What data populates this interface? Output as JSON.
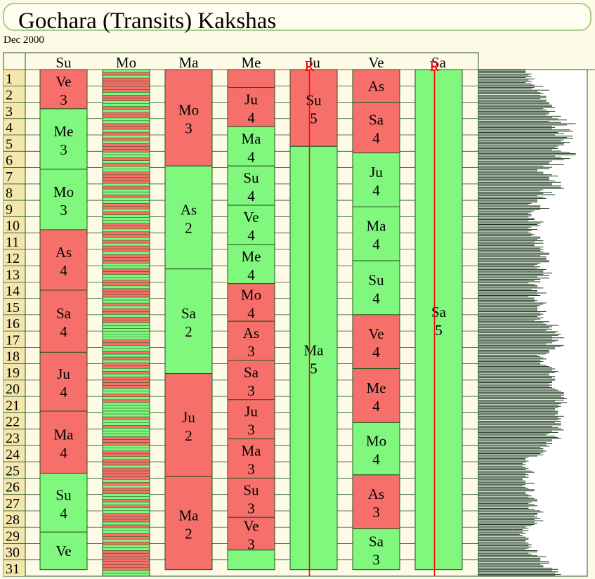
{
  "title": "Gochara (Transits) Kakshas",
  "subtitle": "Dec 2000",
  "colors": {
    "favorable": "#80f87e",
    "unfavorable": "#f76f6a",
    "retro": "#ff0000",
    "grid": "#225522",
    "bar": "#1a3a1a",
    "background": "#fdfbe6"
  },
  "days": [
    "1",
    "2",
    "3",
    "4",
    "5",
    "6",
    "7",
    "8",
    "9",
    "10",
    "11",
    "12",
    "13",
    "14",
    "15",
    "16",
    "17",
    "18",
    "19",
    "20",
    "21",
    "22",
    "23",
    "24",
    "25",
    "26",
    "27",
    "28",
    "29",
    "30",
    "31"
  ],
  "chart_data": {
    "type": "table",
    "columns": [
      {
        "name": "Su",
        "retro_marker": "",
        "blocks": [
          {
            "from": 1,
            "to": 3.4,
            "label": "Ve",
            "num": "3",
            "state": "unfavorable"
          },
          {
            "from": 3.4,
            "to": 7.1,
            "label": "Me",
            "num": "3",
            "state": "favorable"
          },
          {
            "from": 7.1,
            "to": 10.8,
            "label": "Mo",
            "num": "3",
            "state": "favorable"
          },
          {
            "from": 10.8,
            "to": 14.5,
            "label": "As",
            "num": "4",
            "state": "unfavorable"
          },
          {
            "from": 14.5,
            "to": 18.3,
            "label": "Sa",
            "num": "4",
            "state": "unfavorable"
          },
          {
            "from": 18.3,
            "to": 21.9,
            "label": "Ju",
            "num": "4",
            "state": "unfavorable"
          },
          {
            "from": 21.9,
            "to": 25.7,
            "label": "Ma",
            "num": "4",
            "state": "unfavorable"
          },
          {
            "from": 25.7,
            "to": 29.3,
            "label": "Su",
            "num": "4",
            "state": "favorable"
          },
          {
            "from": 29.3,
            "to": 31.6,
            "label": "Ve",
            "num": "",
            "state": "favorable"
          }
        ]
      },
      {
        "name": "Mo",
        "retro_marker": "",
        "stripes": "GRGRRRRRGRRGGRGRRGGRRGRGRGRRRGGRGRGGRRRRGRGGRGGRRGRGGGRRGRRGRGRRGRRRGGRRGGRRGRRRGGRGRRGRRGGGGGGRRGGRGRGRRGRGRRRRGGRGRGGGGGRGGRGGGRRRGGRRGRRGRRRRGRGRRGGRGRGGRRRGRGGRRGRGGRRRRRRRGG"
      },
      {
        "name": "Ma",
        "retro_marker": "",
        "blocks": [
          {
            "from": 1,
            "to": 6.9,
            "label": "Mo",
            "num": "3",
            "state": "unfavorable"
          },
          {
            "from": 6.9,
            "to": 13.2,
            "label": "As",
            "num": "2",
            "state": "favorable"
          },
          {
            "from": 13.2,
            "to": 19.6,
            "label": "Sa",
            "num": "2",
            "state": "favorable"
          },
          {
            "from": 19.6,
            "to": 25.9,
            "label": "Ju",
            "num": "2",
            "state": "unfavorable"
          },
          {
            "from": 25.9,
            "to": 31.6,
            "label": "Ma",
            "num": "2",
            "state": "unfavorable"
          }
        ]
      },
      {
        "name": "Me",
        "retro_marker": "",
        "blocks": [
          {
            "from": 1,
            "to": 2.1,
            "label": "",
            "num": "",
            "state": "unfavorable"
          },
          {
            "from": 2.1,
            "to": 4.5,
            "label": "Ju",
            "num": "4",
            "state": "unfavorable"
          },
          {
            "from": 4.5,
            "to": 6.9,
            "label": "Ma",
            "num": "4",
            "state": "favorable"
          },
          {
            "from": 6.9,
            "to": 9.3,
            "label": "Su",
            "num": "4",
            "state": "favorable"
          },
          {
            "from": 9.3,
            "to": 11.7,
            "label": "Ve",
            "num": "4",
            "state": "favorable"
          },
          {
            "from": 11.7,
            "to": 14.1,
            "label": "Me",
            "num": "4",
            "state": "favorable"
          },
          {
            "from": 14.1,
            "to": 16.4,
            "label": "Mo",
            "num": "4",
            "state": "unfavorable"
          },
          {
            "from": 16.4,
            "to": 18.8,
            "label": "As",
            "num": "3",
            "state": "unfavorable"
          },
          {
            "from": 18.8,
            "to": 21.2,
            "label": "Sa",
            "num": "3",
            "state": "unfavorable"
          },
          {
            "from": 21.2,
            "to": 23.6,
            "label": "Ju",
            "num": "3",
            "state": "unfavorable"
          },
          {
            "from": 23.6,
            "to": 26,
            "label": "Ma",
            "num": "3",
            "state": "unfavorable"
          },
          {
            "from": 26,
            "to": 28.4,
            "label": "Su",
            "num": "3",
            "state": "unfavorable"
          },
          {
            "from": 28.4,
            "to": 30.4,
            "label": "Ve",
            "num": "3",
            "state": "unfavorable"
          },
          {
            "from": 30.4,
            "to": 31.6,
            "label": "",
            "num": "",
            "state": "favorable"
          }
        ]
      },
      {
        "name": "Ju",
        "retro_marker": "R",
        "blocks": [
          {
            "from": 1,
            "to": 5.7,
            "label": "Su",
            "num": "5",
            "state": "unfavorable"
          },
          {
            "from": 5.7,
            "to": 31.6,
            "label": "Ma",
            "num": "5",
            "state": "favorable"
          }
        ]
      },
      {
        "name": "Ve",
        "retro_marker": "",
        "blocks": [
          {
            "from": 1,
            "to": 3,
            "label": "As",
            "num": "",
            "state": "unfavorable"
          },
          {
            "from": 3,
            "to": 6.1,
            "label": "Sa",
            "num": "4",
            "state": "unfavorable"
          },
          {
            "from": 6.1,
            "to": 9.4,
            "label": "Ju",
            "num": "4",
            "state": "favorable"
          },
          {
            "from": 9.4,
            "to": 12.7,
            "label": "Ma",
            "num": "4",
            "state": "favorable"
          },
          {
            "from": 12.7,
            "to": 16,
            "label": "Su",
            "num": "4",
            "state": "favorable"
          },
          {
            "from": 16,
            "to": 19.3,
            "label": "Ve",
            "num": "4",
            "state": "unfavorable"
          },
          {
            "from": 19.3,
            "to": 22.6,
            "label": "Me",
            "num": "4",
            "state": "unfavorable"
          },
          {
            "from": 22.6,
            "to": 25.8,
            "label": "Mo",
            "num": "4",
            "state": "favorable"
          },
          {
            "from": 25.8,
            "to": 29.1,
            "label": "As",
            "num": "3",
            "state": "unfavorable"
          },
          {
            "from": 29.1,
            "to": 31.6,
            "label": "Sa",
            "num": "3",
            "state": "favorable"
          }
        ]
      },
      {
        "name": "Sa",
        "retro_marker": "R",
        "blocks": [
          {
            "from": 1,
            "to": 31.6,
            "label": "Sa",
            "num": "5",
            "state": "favorable"
          }
        ]
      }
    ],
    "summary_bars": [
      16,
      16,
      16,
      18,
      17,
      18,
      16,
      19,
      17,
      18,
      16,
      18,
      19,
      22,
      19,
      18,
      24,
      20,
      21,
      22,
      21,
      23,
      23,
      21,
      23,
      23,
      24,
      24,
      25,
      25,
      26,
      22,
      23,
      26,
      24,
      24,
      23,
      28,
      25,
      27,
      30,
      24,
      28,
      33,
      30,
      25,
      26,
      25,
      31,
      32,
      27,
      29,
      26,
      32,
      30,
      32,
      29,
      28,
      31,
      29,
      29,
      27,
      26,
      27,
      25,
      28,
      31,
      33,
      33,
      26,
      28,
      31,
      29,
      25,
      24,
      24,
      29,
      22,
      25,
      24,
      20,
      20,
      22,
      22,
      25,
      27,
      24,
      24,
      24,
      26,
      28,
      25,
      25,
      28,
      28,
      29,
      22,
      21,
      25,
      22,
      26,
      20,
      22,
      23,
      20,
      20,
      20,
      18,
      17,
      21,
      21,
      24,
      21,
      19,
      18,
      17,
      18,
      18,
      17,
      19,
      19,
      17,
      22,
      21,
      20,
      21,
      18,
      17,
      20,
      18,
      17,
      18,
      19,
      18,
      21,
      21,
      20,
      22,
      19,
      22,
      19,
      19,
      22,
      21,
      22,
      21,
      22,
      24,
      24,
      21,
      23,
      23,
      23,
      24,
      24,
      21,
      20,
      19,
      21,
      20,
      23,
      22,
      22,
      25,
      22,
      24,
      20,
      24,
      21,
      19,
      21,
      17,
      19,
      20,
      20,
      22,
      18,
      20,
      20,
      23,
      20,
      21,
      17,
      19,
      19,
      20,
      19,
      23,
      22,
      21,
      20,
      20,
      20,
      20,
      23,
      21,
      22,
      21,
      20,
      22,
      21,
      19,
      24,
      22,
      23,
      27,
      25,
      24,
      25,
      23,
      27,
      26,
      28,
      27,
      25,
      29,
      25,
      27,
      26,
      25,
      23,
      29,
      28,
      26,
      26,
      24,
      24,
      24,
      23,
      20,
      21,
      22,
      23,
      21,
      22,
      21,
      21,
      23,
      24,
      25,
      26,
      25,
      27,
      26,
      24,
      24,
      26,
      25,
      26,
      26,
      25,
      25,
      24,
      25,
      24,
      25,
      26,
      27,
      28,
      29,
      29,
      29,
      28,
      29,
      30,
      29,
      26,
      30,
      28,
      27,
      28,
      27,
      26,
      26,
      27,
      27,
      27,
      26,
      29,
      27,
      28,
      27,
      28,
      26,
      28,
      28,
      25,
      27,
      28,
      29,
      25,
      27,
      24,
      23,
      26,
      27,
      28,
      25,
      25,
      23,
      25,
      23,
      24,
      21,
      22,
      22,
      23,
      22,
      21,
      22,
      20,
      17,
      16,
      16,
      17,
      16,
      15,
      16,
      15,
      16,
      17,
      16,
      18,
      19,
      16,
      17,
      16,
      17,
      15,
      15,
      16,
      16,
      19,
      16,
      15,
      16,
      17,
      19,
      19,
      16,
      16,
      17,
      18,
      17,
      19,
      20,
      20,
      18,
      17,
      19,
      20,
      17,
      17,
      19,
      21,
      22,
      20,
      20,
      19,
      20,
      21,
      19,
      22,
      19,
      20,
      19,
      18,
      16,
      17,
      15,
      17,
      15,
      16,
      14,
      15,
      16,
      17,
      17,
      16,
      16,
      17,
      18,
      17,
      18,
      17,
      16,
      20,
      20,
      17,
      18,
      20,
      23,
      21,
      21,
      21,
      24,
      24,
      21,
      22,
      22,
      25,
      27,
      25,
      27,
      26,
      28,
      26
    ],
    "summary_max": 35
  }
}
